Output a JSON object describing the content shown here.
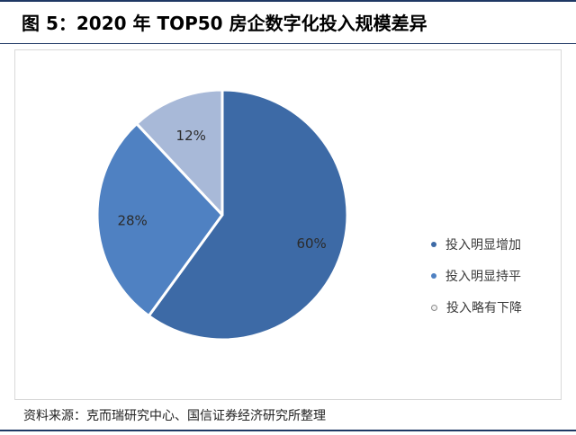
{
  "title": "图 5：2020 年 TOP50 房企数字化投入规模差异",
  "source": "资料来源：克而瑞研究中心、国信证券经济研究所整理",
  "colors": {
    "slice_1": "#3d6aa6",
    "slice_2": "#4f81c2",
    "slice_3": "#a8b9d8",
    "legend_3_dot": "#f2f2f2"
  },
  "chart_data": {
    "type": "pie",
    "categories": [
      "投入明显增加",
      "投入明显持平",
      "投入略有下降"
    ],
    "values": [
      60,
      28,
      12
    ],
    "labels": [
      "60%",
      "28%",
      "12%"
    ],
    "start_angle": "12 o'clock",
    "direction": "clockwise",
    "legend_position": "right"
  }
}
